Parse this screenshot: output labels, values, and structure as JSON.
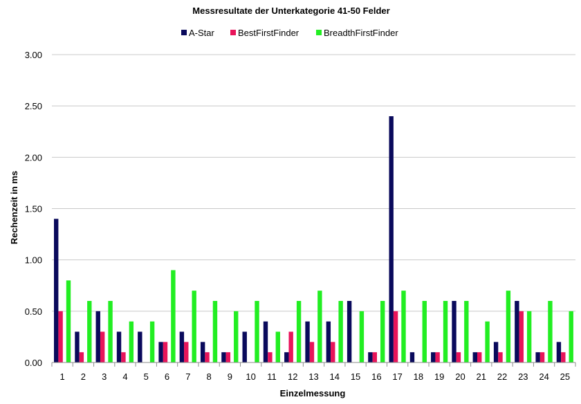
{
  "chart_data": {
    "type": "bar",
    "title": "Messresultate der Unterkategorie 41-50 Felder",
    "xlabel": "Einzelmessung",
    "ylabel": "Rechenzeit in ms",
    "ylim": [
      0,
      3
    ],
    "yticks": [
      "0.00",
      "0.50",
      "1.00",
      "1.50",
      "2.00",
      "2.50",
      "3.00"
    ],
    "ytick_values": [
      0,
      0.5,
      1,
      1.5,
      2,
      2.5,
      3
    ],
    "grid": true,
    "legend_position": "top",
    "categories": [
      "1",
      "2",
      "3",
      "4",
      "5",
      "6",
      "7",
      "8",
      "9",
      "10",
      "11",
      "12",
      "13",
      "14",
      "15",
      "16",
      "17",
      "18",
      "19",
      "20",
      "21",
      "22",
      "23",
      "24",
      "25"
    ],
    "series": [
      {
        "name": "A-Star",
        "color": "#0a0a5c",
        "values": [
          1.4,
          0.3,
          0.5,
          0.3,
          0.3,
          0.2,
          0.3,
          0.2,
          0.1,
          0.3,
          0.4,
          0.1,
          0.4,
          0.4,
          0.6,
          0.1,
          2.4,
          0.1,
          0.1,
          0.6,
          0.1,
          0.2,
          0.6,
          0.1,
          0.2
        ]
      },
      {
        "name": "BestFirstFinder",
        "color": "#e8145a",
        "values": [
          0.5,
          0.1,
          0.3,
          0.1,
          0,
          0.2,
          0.2,
          0.1,
          0.1,
          0,
          0.1,
          0.3,
          0.2,
          0.2,
          0,
          0.1,
          0.5,
          0,
          0.1,
          0.1,
          0.1,
          0.1,
          0.5,
          0.1,
          0.1
        ]
      },
      {
        "name": "BreadthFirstFinder",
        "color": "#22ee22",
        "values": [
          0.8,
          0.6,
          0.6,
          0.4,
          0.4,
          0.9,
          0.7,
          0.6,
          0.5,
          0.6,
          0.3,
          0.6,
          0.7,
          0.6,
          0.5,
          0.6,
          0.7,
          0.6,
          0.6,
          0.6,
          0.4,
          0.7,
          0.5,
          0.6,
          0.5
        ]
      }
    ]
  }
}
